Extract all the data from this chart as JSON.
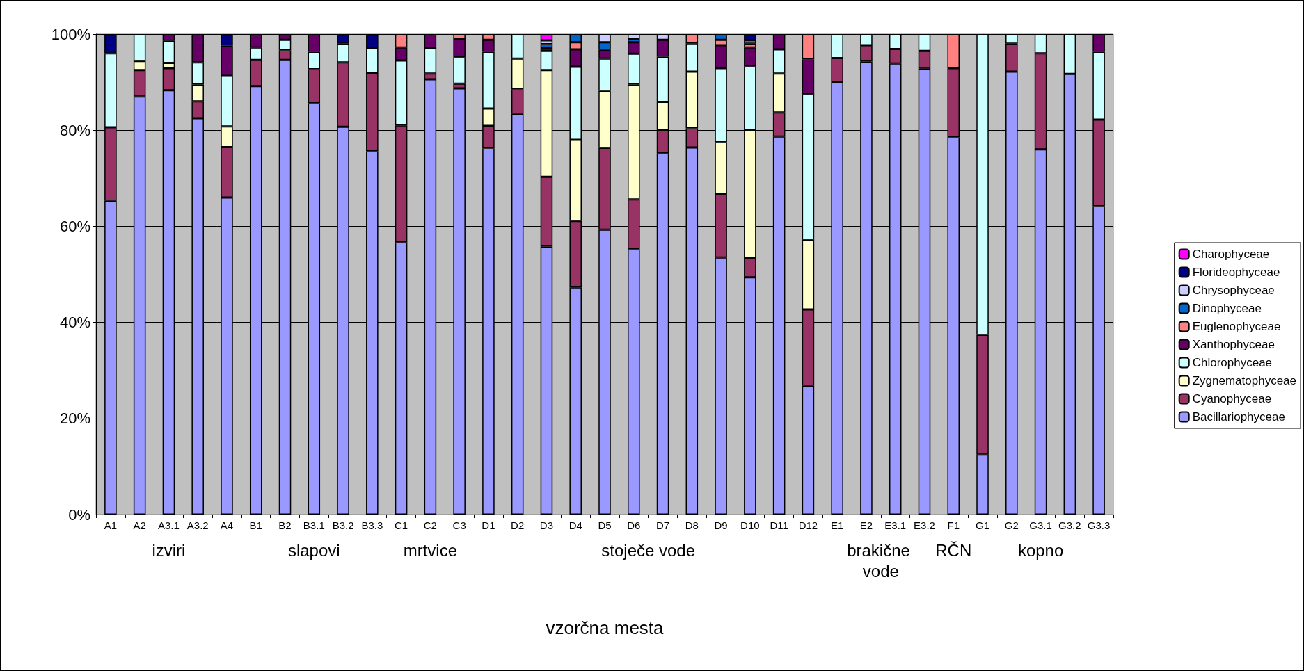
{
  "chart_data": {
    "type": "bar",
    "stacked": true,
    "xlabel": "vzorčna mesta",
    "categories": [
      "A1",
      "A2",
      "A3.1",
      "A3.2",
      "A4",
      "B1",
      "B2",
      "B3.1",
      "B3.2",
      "B3.3",
      "C1",
      "C2",
      "C3",
      "D1",
      "D2",
      "D3",
      "D4",
      "D5",
      "D6",
      "D7",
      "D8",
      "D9",
      "D10",
      "D11",
      "D12",
      "E1",
      "E2",
      "E3.1",
      "E3.2",
      "F1",
      "G1",
      "G2",
      "G3.1",
      "G3.2",
      "G3.3"
    ],
    "ylim": [
      0,
      100
    ],
    "yticks": [
      {
        "value": 0,
        "label": "0%"
      },
      {
        "value": 20,
        "label": "20%"
      },
      {
        "value": 40,
        "label": "40%"
      },
      {
        "value": 60,
        "label": "60%"
      },
      {
        "value": 80,
        "label": "80%"
      },
      {
        "value": 100,
        "label": "100%"
      }
    ],
    "grid": "y",
    "legend": "right",
    "annotations": [
      "izviri",
      "slapovi",
      "mrtvice",
      "stoječe vode",
      "brakične vode",
      "RČN",
      "kopno"
    ],
    "series": [
      {
        "name": "Bacillariophyceae",
        "color": "#9999ff",
        "values": [
          65.3,
          87,
          88.3,
          82.5,
          66,
          89.2,
          94.6,
          85.6,
          80.7,
          75.6,
          56.7,
          90.6,
          88.7,
          76.2,
          83.4,
          55.8,
          47.3,
          59.3,
          55.2,
          75.2,
          76.4,
          53.5,
          49.4,
          78.7,
          26.8,
          90,
          94.3,
          93.9,
          92.8,
          78.5,
          12.5,
          92.2,
          76,
          91.7,
          64.2
        ]
      },
      {
        "name": "Cyanophyceae",
        "color": "#993366",
        "values": [
          15.3,
          5.5,
          4.6,
          3.5,
          10.5,
          5.4,
          2.0,
          7.1,
          13.4,
          16.3,
          24.3,
          1.2,
          1.0,
          4.7,
          5.1,
          14.5,
          13.8,
          17.0,
          10.4,
          4.8,
          4.0,
          13.2,
          4.0,
          5.0,
          15.9,
          5.0,
          3.4,
          3.0,
          3.7,
          14.4,
          24.9,
          5.8,
          20.0,
          null,
          18.0
        ]
      },
      {
        "name": "Zygnematophyceae",
        "color": "#ffffcc",
        "values": [
          null,
          1.9,
          1.1,
          3.5,
          4.3,
          null,
          null,
          null,
          null,
          null,
          null,
          null,
          null,
          3.6,
          6.4,
          22.2,
          16.9,
          11.9,
          23.9,
          5.9,
          11.8,
          10.8,
          26.6,
          8.1,
          14.5,
          null,
          null,
          null,
          null,
          null,
          null,
          null,
          null,
          null,
          null
        ]
      },
      {
        "name": "Chlorophyceae",
        "color": "#ccffff",
        "values": [
          15.4,
          5.6,
          4.6,
          4.6,
          10.5,
          2.6,
          2.2,
          3.6,
          3.9,
          5.2,
          13.5,
          5.3,
          5.5,
          11.8,
          5.1,
          4.0,
          15.2,
          6.7,
          6.4,
          9.4,
          5.9,
          15.4,
          13.3,
          5.0,
          30.3,
          5.0,
          2.3,
          3.1,
          3.5,
          null,
          62.6,
          2.0,
          4.0,
          8.3,
          14.1
        ]
      },
      {
        "name": "Xanthophyceae",
        "color": "#660066",
        "values": [
          null,
          null,
          1.4,
          5.9,
          6.3,
          2.8,
          1.2,
          3.7,
          null,
          null,
          2.7,
          2.9,
          3.8,
          2.5,
          null,
          0.6,
          3.6,
          1.8,
          2.4,
          3.5,
          null,
          4.8,
          3.9,
          3.2,
          7.2,
          null,
          null,
          null,
          null,
          null,
          null,
          null,
          null,
          null,
          3.7
        ]
      },
      {
        "name": "Euglenophyceae",
        "color": "#ff8080",
        "values": [
          null,
          null,
          null,
          null,
          null,
          null,
          null,
          null,
          null,
          null,
          2.8,
          null,
          1.0,
          1.2,
          null,
          null,
          1.5,
          null,
          null,
          null,
          1.9,
          1.1,
          0.8,
          null,
          5.3,
          null,
          null,
          null,
          null,
          7.1,
          null,
          null,
          null,
          null,
          null
        ]
      },
      {
        "name": "Dinophyceae",
        "color": "#0066cc",
        "values": [
          null,
          null,
          null,
          null,
          null,
          null,
          null,
          null,
          null,
          null,
          null,
          null,
          null,
          null,
          null,
          0.8,
          1.7,
          1.6,
          0.7,
          null,
          null,
          1.2,
          null,
          null,
          null,
          null,
          null,
          null,
          null,
          null,
          null,
          null,
          null,
          null,
          null
        ]
      },
      {
        "name": "Chrysophyceae",
        "color": "#ccccff",
        "values": [
          null,
          null,
          null,
          null,
          null,
          null,
          null,
          null,
          null,
          null,
          null,
          null,
          null,
          null,
          null,
          0.8,
          null,
          1.7,
          1.0,
          1.2,
          null,
          null,
          0.7,
          null,
          null,
          null,
          null,
          null,
          null,
          null,
          null,
          null,
          null,
          null,
          null
        ]
      },
      {
        "name": "Florideophyceae",
        "color": "#000080",
        "values": [
          4.0,
          null,
          null,
          null,
          2.4,
          null,
          null,
          null,
          2.0,
          2.9,
          null,
          null,
          null,
          null,
          null,
          null,
          null,
          null,
          null,
          null,
          null,
          null,
          1.3,
          null,
          null,
          null,
          null,
          null,
          null,
          null,
          null,
          null,
          null,
          null,
          null
        ]
      },
      {
        "name": "Charophyceae",
        "color": "#ff00ff",
        "values": [
          null,
          null,
          null,
          null,
          null,
          null,
          null,
          null,
          null,
          null,
          null,
          null,
          null,
          null,
          null,
          1.3,
          null,
          null,
          null,
          null,
          null,
          null,
          null,
          null,
          null,
          null,
          null,
          null,
          null,
          null,
          null,
          null,
          null,
          null,
          null
        ]
      }
    ]
  }
}
